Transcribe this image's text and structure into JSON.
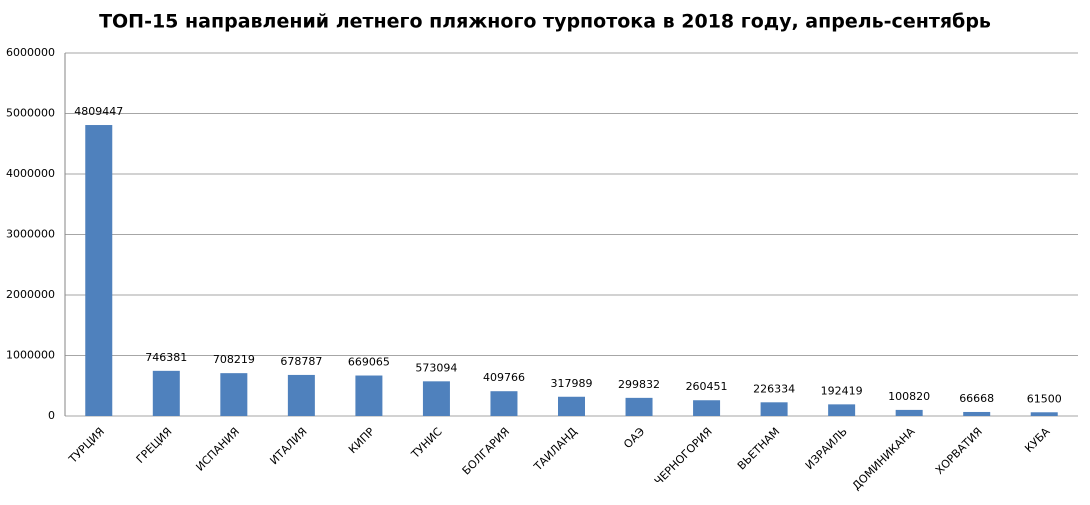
{
  "chart_data": {
    "type": "bar",
    "title": "ТОП-15 направлений летнего пляжного турпотока в 2018 году, апрель-сентябрь",
    "categories": [
      "ТУРЦИЯ",
      "ГРЕЦИЯ",
      "ИСПАНИЯ",
      "ИТАЛИЯ",
      "КИПР",
      "ТУНИС",
      "БОЛГАРИЯ",
      "ТАИЛАНД",
      "ОАЭ",
      "ЧЕРНОГОРИЯ",
      "ВЬЕТНАМ",
      "ИЗРАИЛЬ",
      "ДОМИНИКАНА",
      "ХОРВАТИЯ",
      "КУБА"
    ],
    "values": [
      4809447,
      746381,
      708219,
      678787,
      669065,
      573094,
      409766,
      317989,
      299832,
      260451,
      226334,
      192419,
      100820,
      66668,
      61500
    ],
    "color": "#4f81bd",
    "ylim": [
      0,
      6000000
    ],
    "yticks": [
      0,
      1000000,
      2000000,
      3000000,
      4000000,
      5000000,
      6000000
    ],
    "grid": true
  }
}
